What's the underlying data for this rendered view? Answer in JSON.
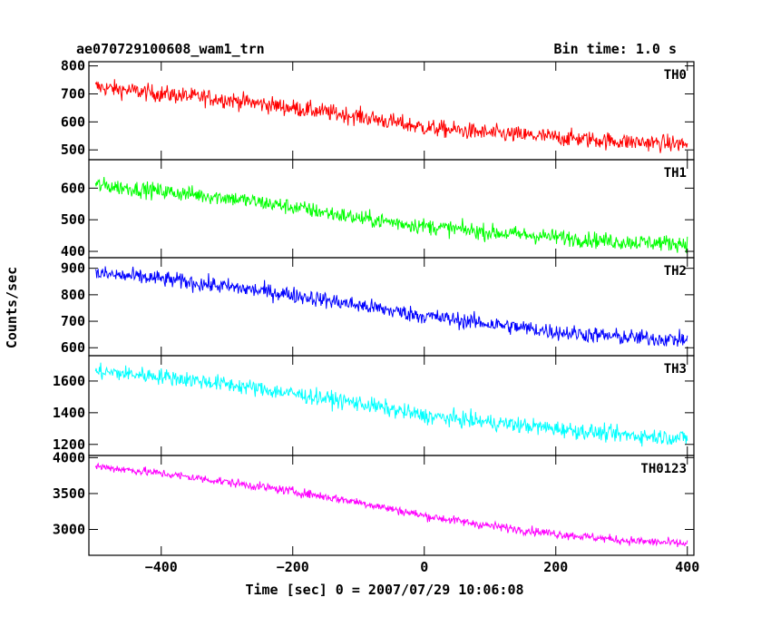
{
  "header": {
    "left_title": "ae070729100608_wam1_trn",
    "right_title": "Bin time: 1.0 s"
  },
  "axes": {
    "xlabel": "Time [sec] 0 = 2007/07/29 10:06:08",
    "ylabel": "Counts/sec"
  },
  "chart_data": {
    "type": "line",
    "title": "ae070729100608_wam1_trn",
    "subtitle": "Bin time: 1.0 s",
    "xlabel": "Time [sec] 0 = 2007/07/29 10:06:08",
    "ylabel": "Counts/sec",
    "xlim": [
      -510,
      410
    ],
    "x_ticks": [
      -400,
      -200,
      0,
      200,
      400
    ],
    "x_step": 1.0,
    "layout": "stacked panels sharing x-axis",
    "series": [
      {
        "name": "TH0",
        "color": "#ff0000",
        "ylim": [
          465,
          815
        ],
        "y_ticks": [
          500,
          600,
          700,
          800
        ],
        "trend_x": [
          -500,
          -400,
          -300,
          -200,
          -100,
          0,
          100,
          200,
          300,
          400
        ],
        "trend_y": [
          725,
          700,
          680,
          650,
          620,
          580,
          560,
          545,
          530,
          520
        ],
        "noise": 30
      },
      {
        "name": "TH1",
        "color": "#00ff00",
        "ylim": [
          380,
          690
        ],
        "y_ticks": [
          400,
          500,
          600
        ],
        "trend_x": [
          -500,
          -400,
          -300,
          -200,
          -100,
          0,
          100,
          200,
          300,
          400
        ],
        "trend_y": [
          610,
          590,
          570,
          540,
          505,
          480,
          460,
          445,
          430,
          425
        ],
        "noise": 25
      },
      {
        "name": "TH2",
        "color": "#0000ff",
        "ylim": [
          570,
          940
        ],
        "y_ticks": [
          600,
          700,
          800,
          900
        ],
        "trend_x": [
          -500,
          -400,
          -300,
          -200,
          -100,
          0,
          100,
          200,
          300,
          400
        ],
        "trend_y": [
          880,
          860,
          830,
          800,
          760,
          720,
          690,
          660,
          640,
          630
        ],
        "noise": 30
      },
      {
        "name": "TH3",
        "color": "#00ffff",
        "ylim": [
          1130,
          1760
        ],
        "y_ticks": [
          1200,
          1400,
          1600
        ],
        "trend_x": [
          -500,
          -400,
          -300,
          -200,
          -100,
          0,
          100,
          200,
          300,
          400
        ],
        "trend_y": [
          1660,
          1630,
          1580,
          1520,
          1460,
          1380,
          1340,
          1300,
          1260,
          1240
        ],
        "noise": 50
      },
      {
        "name": "TH0123",
        "color": "#ff00ff",
        "ylim": [
          2640,
          4030
        ],
        "y_ticks": [
          3000,
          3500,
          4000
        ],
        "trend_x": [
          -500,
          -400,
          -300,
          -200,
          -100,
          0,
          100,
          200,
          300,
          400
        ],
        "trend_y": [
          3880,
          3780,
          3660,
          3530,
          3380,
          3190,
          3050,
          2940,
          2850,
          2800
        ],
        "noise": 60
      }
    ]
  }
}
